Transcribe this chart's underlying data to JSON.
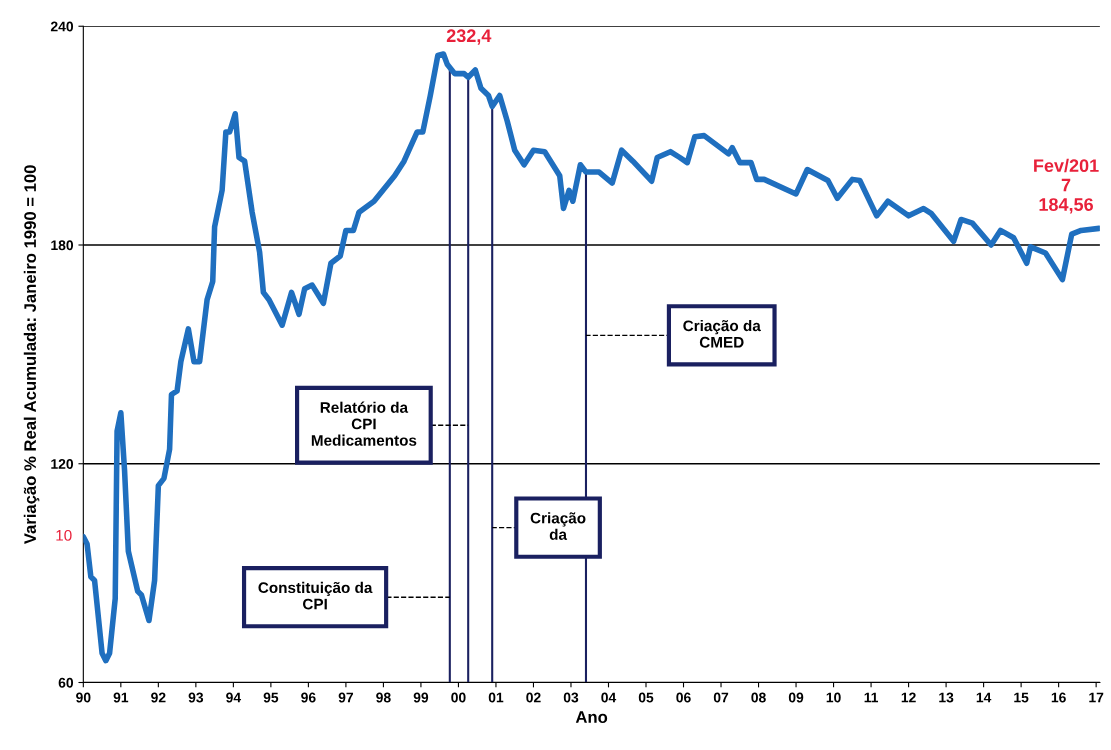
{
  "chart_data": {
    "type": "line",
    "xlabel": "Ano",
    "ylabel": "Variação % Real Acumulada: Janeiro 1990 = 100",
    "series": [
      {
        "color": "#1f6fbf",
        "x": [
          1990.0,
          1990.1,
          1990.2,
          1990.3,
          1990.5,
          1990.6,
          1990.7,
          1990.85,
          1990.9,
          1991.0,
          1991.1,
          1991.2,
          1991.45,
          1991.55,
          1991.75,
          1991.9,
          1992.0,
          1992.15,
          1992.3,
          1992.35,
          1992.5,
          1992.6,
          1992.8,
          1992.95,
          1993.1,
          1993.3,
          1993.45,
          1993.5,
          1993.7,
          1993.8,
          1993.9,
          1994.05,
          1994.15,
          1994.3,
          1994.5,
          1994.7,
          1994.8,
          1994.95,
          1995.15,
          1995.3,
          1995.55,
          1995.75,
          1995.9,
          1996.1,
          1996.4,
          1996.6,
          1996.85,
          1997.0,
          1997.2,
          1997.35,
          1997.75,
          1998.3,
          1998.55,
          1998.9,
          1999.05,
          1999.25,
          1999.45,
          1999.6,
          1999.7,
          1999.9,
          2000.15,
          2000.26,
          2000.45,
          2000.6,
          2000.8,
          2000.9,
          2001.1,
          2001.3,
          2001.5,
          2001.75,
          2002.0,
          2002.3,
          2002.7,
          2002.8,
          2002.95,
          2003.05,
          2003.25,
          2003.4,
          2003.75,
          2004.1,
          2004.35,
          2004.65,
          2005.15,
          2005.3,
          2005.65,
          2005.9,
          2006.1,
          2006.3,
          2006.55,
          2007.2,
          2007.3,
          2007.5,
          2007.8,
          2007.95,
          2008.15,
          2009.0,
          2009.3,
          2009.85,
          2010.1,
          2010.5,
          2010.7,
          2011.15,
          2011.45,
          2012.0,
          2012.4,
          2012.6,
          2013.2,
          2013.4,
          2013.7,
          2014.2,
          2014.45,
          2014.8,
          2015.15,
          2015.25,
          2015.65,
          2016.1,
          2016.35,
          2016.6,
          2017.08
        ],
        "values": [
          100,
          98,
          89,
          88,
          68,
          66,
          68,
          83,
          129,
          134,
          118,
          96,
          85,
          84,
          77,
          88,
          114,
          116,
          124,
          139,
          140,
          148,
          157,
          148,
          148,
          165,
          170,
          185,
          195,
          211,
          211,
          216,
          204,
          203,
          189,
          178,
          167,
          165,
          161,
          158,
          167,
          161,
          168,
          169,
          164,
          175,
          177,
          184,
          184,
          189,
          192,
          199,
          203,
          211,
          211,
          221,
          232,
          232.4,
          229.6,
          227,
          227,
          226,
          228,
          223,
          221,
          218,
          221,
          214,
          206,
          202,
          206,
          205.6,
          199,
          190,
          195,
          192,
          202,
          200,
          200,
          197,
          206,
          203,
          197.5,
          204,
          205.6,
          204,
          202.6,
          209.7,
          210,
          205,
          206.7,
          202.6,
          202.6,
          198,
          198,
          194,
          200.7,
          197.7,
          192.8,
          198,
          197.7,
          188,
          192,
          188,
          190,
          188.7,
          181,
          187,
          186,
          180,
          184,
          182,
          175,
          179.5,
          177.8,
          170.5,
          183,
          184,
          184.56
        ]
      }
    ],
    "xlim": [
      1990,
      2017.1
    ],
    "xticks": [
      {
        "value": 1990,
        "label": "90"
      },
      {
        "value": 1991,
        "label": "91"
      },
      {
        "value": 1992,
        "label": "92"
      },
      {
        "value": 1993,
        "label": "93"
      },
      {
        "value": 1994,
        "label": "94"
      },
      {
        "value": 1995,
        "label": "95"
      },
      {
        "value": 1996,
        "label": "96"
      },
      {
        "value": 1997,
        "label": "97"
      },
      {
        "value": 1998,
        "label": "98"
      },
      {
        "value": 1999,
        "label": "99"
      },
      {
        "value": 2000,
        "label": "00"
      },
      {
        "value": 2001,
        "label": "01"
      },
      {
        "value": 2002,
        "label": "02"
      },
      {
        "value": 2003,
        "label": "03"
      },
      {
        "value": 2004,
        "label": "04"
      },
      {
        "value": 2005,
        "label": "05"
      },
      {
        "value": 2006,
        "label": "06"
      },
      {
        "value": 2007,
        "label": "07"
      },
      {
        "value": 2008,
        "label": "08"
      },
      {
        "value": 2009,
        "label": "09"
      },
      {
        "value": 2010,
        "label": "10"
      },
      {
        "value": 2011,
        "label": "11"
      },
      {
        "value": 2012,
        "label": "12"
      },
      {
        "value": 2013,
        "label": "13"
      },
      {
        "value": 2014,
        "label": "14"
      },
      {
        "value": 2015,
        "label": "15"
      },
      {
        "value": 2016,
        "label": "16"
      },
      {
        "value": 2017,
        "label": "17"
      }
    ],
    "ylim": [
      60,
      240
    ],
    "yticks": [
      60,
      120,
      180,
      240
    ],
    "grid": "y",
    "legend": false,
    "marker": "none",
    "line_style": "solid",
    "ref_lines": [
      {
        "axis": "x",
        "value": 1999.77,
        "label": "Constituição da\nCPI",
        "color": "#1a2060"
      },
      {
        "axis": "x",
        "value": 2000.26,
        "label": "Relatório da\nCPI\nMedicamentos",
        "color": "#1a2060"
      },
      {
        "axis": "x",
        "value": 2000.9,
        "label": "Criação\nda",
        "color": "#1a2060"
      },
      {
        "axis": "x",
        "value": 2003.4,
        "label": "Criação da\nCMED",
        "color": "#1a2060"
      }
    ],
    "annotations": [
      {
        "text": "232,4",
        "x": 1999.6,
        "y": 232.4
      },
      {
        "text": "Fev/201\n7\n184,56",
        "x": 2017.08,
        "y": 184.56
      },
      {
        "text": "10",
        "x": 1990,
        "y": 100
      }
    ]
  }
}
